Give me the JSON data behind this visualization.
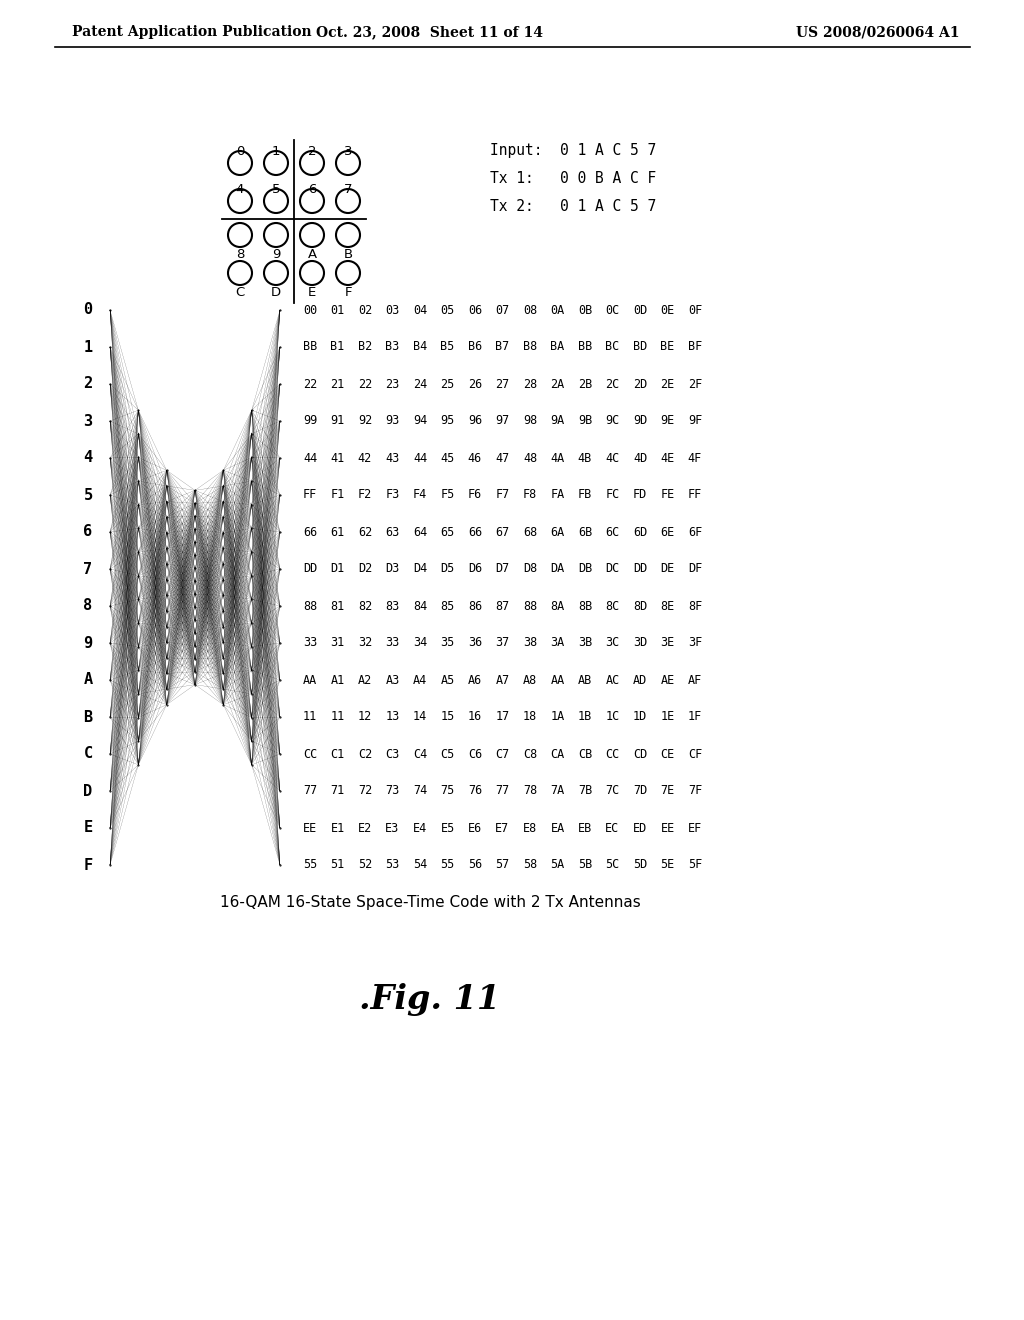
{
  "header_left": "Patent Application Publication",
  "header_mid": "Oct. 23, 2008  Sheet 11 of 14",
  "header_right": "US 2008/0260064 A1",
  "input_label": "Input:  0 1 A C 5 7",
  "tx1_label": "Tx 1:   0 0 B A C F",
  "tx2_label": "Tx 2:   0 1 A C 5 7",
  "constellation_rows": [
    [
      "00",
      "01",
      "02",
      "03",
      "04",
      "05",
      "06",
      "07",
      "08",
      "0A",
      "0B",
      "0C",
      "0D",
      "0E",
      "0F"
    ],
    [
      "BB",
      "B1",
      "B2",
      "B3",
      "B4",
      "B5",
      "B6",
      "B7",
      "B8",
      "BA",
      "BB",
      "BC",
      "BD",
      "BE",
      "BF"
    ],
    [
      "22",
      "21",
      "22",
      "23",
      "24",
      "25",
      "26",
      "27",
      "28",
      "2A",
      "2B",
      "2C",
      "2D",
      "2E",
      "2F"
    ],
    [
      "99",
      "91",
      "92",
      "93",
      "94",
      "95",
      "96",
      "97",
      "98",
      "9A",
      "9B",
      "9C",
      "9D",
      "9E",
      "9F"
    ],
    [
      "44",
      "41",
      "42",
      "43",
      "44",
      "45",
      "46",
      "47",
      "48",
      "4A",
      "4B",
      "4C",
      "4D",
      "4E",
      "4F"
    ],
    [
      "FF",
      "F1",
      "F2",
      "F3",
      "F4",
      "F5",
      "F6",
      "F7",
      "F8",
      "FA",
      "FB",
      "FC",
      "FD",
      "FE",
      "FF"
    ],
    [
      "66",
      "61",
      "62",
      "63",
      "64",
      "65",
      "66",
      "67",
      "68",
      "6A",
      "6B",
      "6C",
      "6D",
      "6E",
      "6F"
    ],
    [
      "DD",
      "D1",
      "D2",
      "D3",
      "D4",
      "D5",
      "D6",
      "D7",
      "D8",
      "DA",
      "DB",
      "DC",
      "DD",
      "DE",
      "DF"
    ],
    [
      "88",
      "81",
      "82",
      "83",
      "84",
      "85",
      "86",
      "87",
      "88",
      "8A",
      "8B",
      "8C",
      "8D",
      "8E",
      "8F"
    ],
    [
      "33",
      "31",
      "32",
      "33",
      "34",
      "35",
      "36",
      "37",
      "38",
      "3A",
      "3B",
      "3C",
      "3D",
      "3E",
      "3F"
    ],
    [
      "AA",
      "A1",
      "A2",
      "A3",
      "A4",
      "A5",
      "A6",
      "A7",
      "A8",
      "AA",
      "AB",
      "AC",
      "AD",
      "AE",
      "AF"
    ],
    [
      "11",
      "11",
      "12",
      "13",
      "14",
      "15",
      "16",
      "17",
      "18",
      "1A",
      "1B",
      "1C",
      "1D",
      "1E",
      "1F"
    ],
    [
      "CC",
      "C1",
      "C2",
      "C3",
      "C4",
      "C5",
      "C6",
      "C7",
      "C8",
      "CA",
      "CB",
      "CC",
      "CD",
      "CE",
      "CF"
    ],
    [
      "77",
      "71",
      "72",
      "73",
      "74",
      "75",
      "76",
      "77",
      "78",
      "7A",
      "7B",
      "7C",
      "7D",
      "7E",
      "7F"
    ],
    [
      "EE",
      "E1",
      "E2",
      "E3",
      "E4",
      "E5",
      "E6",
      "E7",
      "E8",
      "EA",
      "EB",
      "EC",
      "ED",
      "EE",
      "EF"
    ],
    [
      "55",
      "51",
      "52",
      "53",
      "54",
      "55",
      "56",
      "57",
      "58",
      "5A",
      "5B",
      "5C",
      "5D",
      "5E",
      "5F"
    ]
  ],
  "row_labels": [
    "0",
    "1",
    "2",
    "3",
    "4",
    "5",
    "6",
    "7",
    "8",
    "9",
    "A",
    "B",
    "C",
    "D",
    "E",
    "F"
  ],
  "caption": "16-QAM 16-State Space-Time Code with 2 Tx Antennas",
  "fig_label": ".Fig. 11",
  "bg_color": "#ffffff"
}
